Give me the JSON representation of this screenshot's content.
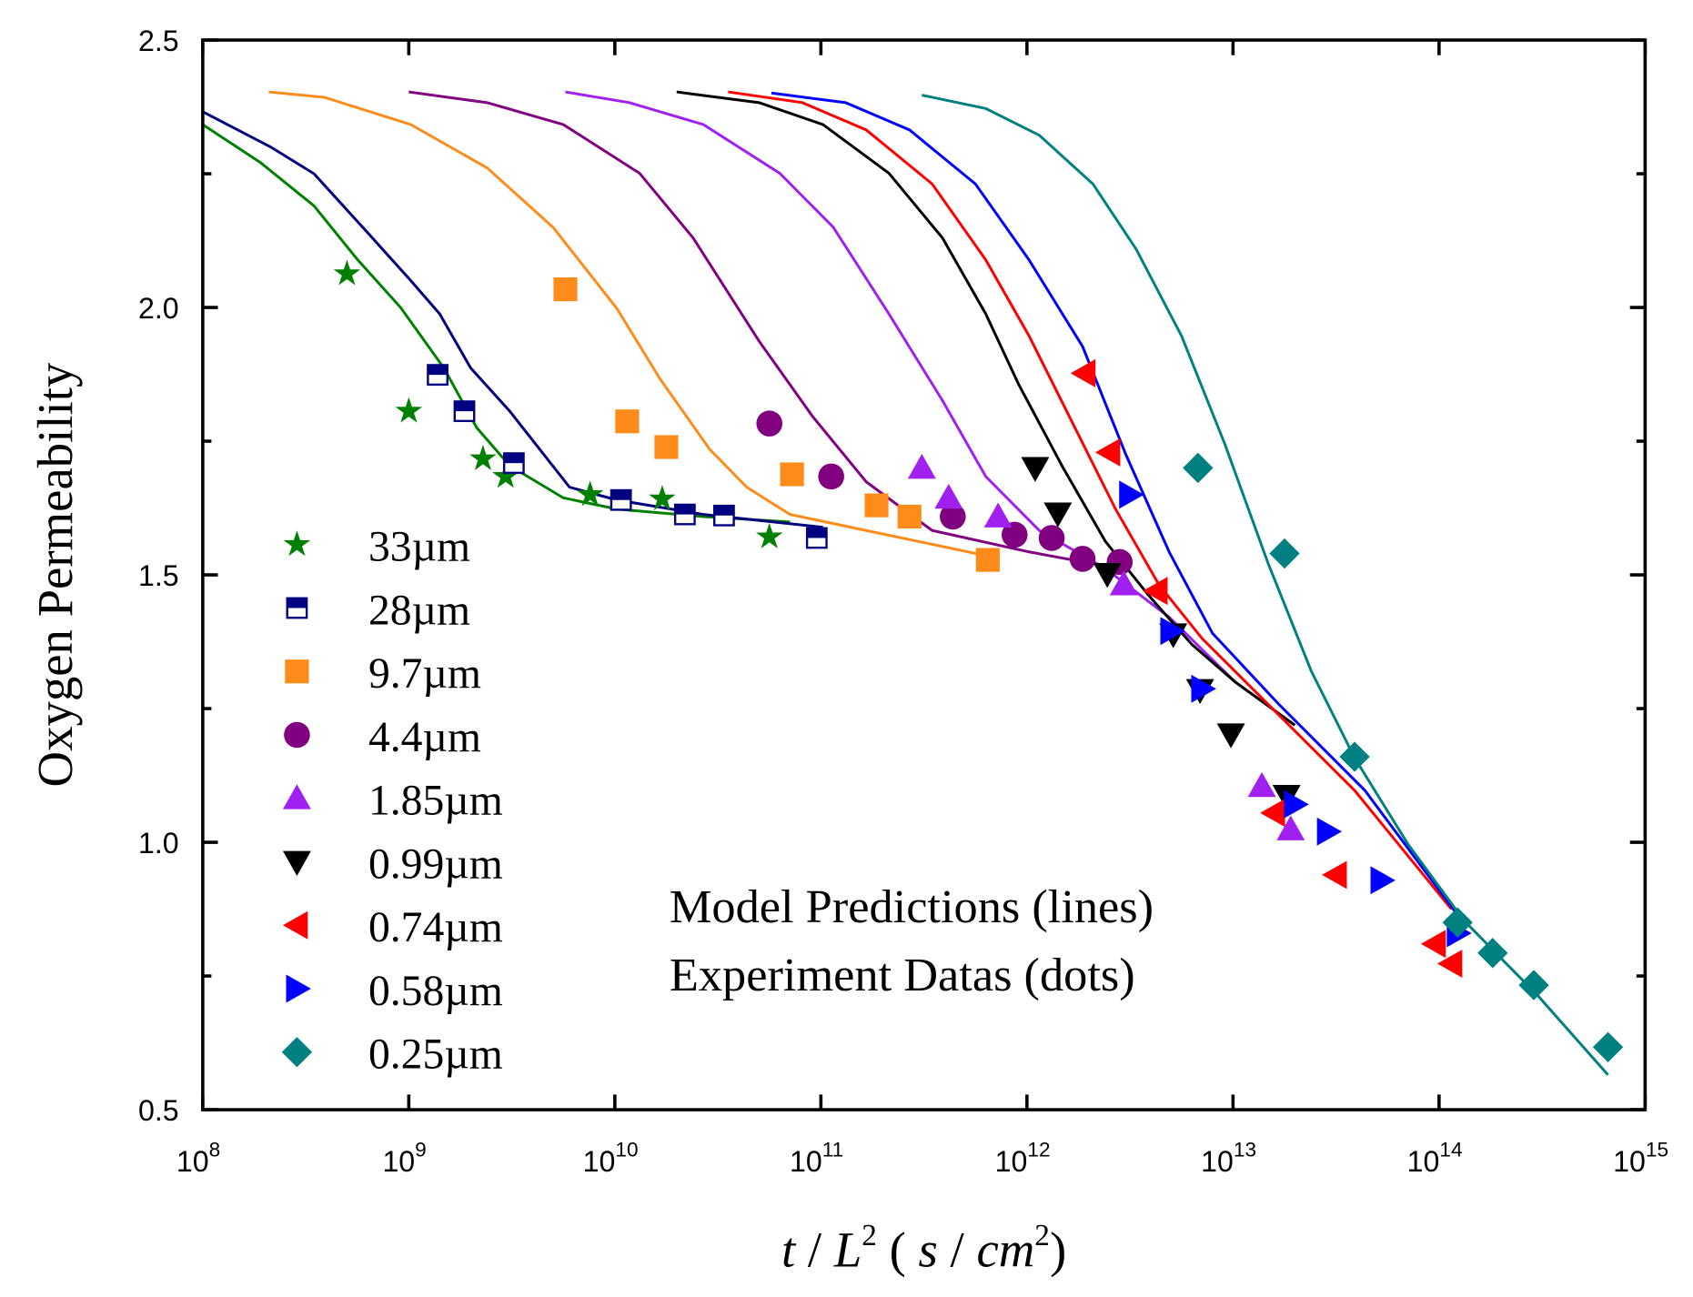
{
  "chart_data": {
    "type": "scatter",
    "title": "",
    "xlabel": "t / L2 ( s / cm2 )",
    "xlabel_parts": {
      "t": "t",
      "slash1": " / ",
      "L": "L",
      "sup1": "2",
      "open": " ( ",
      "s": "s",
      "slash2": " / ",
      "cm": "cm",
      "sup2": "2",
      "close": ")"
    },
    "ylabel": "Oxygen Permeability",
    "x_scale": "log10",
    "xlim_log10": [
      8,
      15
    ],
    "ylim": [
      0.5,
      2.5
    ],
    "x_ticks": [
      {
        "base": "10",
        "exp": "8"
      },
      {
        "base": "10",
        "exp": "9"
      },
      {
        "base": "10",
        "exp": "10"
      },
      {
        "base": "10",
        "exp": "11"
      },
      {
        "base": "10",
        "exp": "12"
      },
      {
        "base": "10",
        "exp": "13"
      },
      {
        "base": "10",
        "exp": "14"
      },
      {
        "base": "10",
        "exp": "15"
      }
    ],
    "y_ticks": [
      "0.5",
      "1.0",
      "1.5",
      "2.0",
      "2.5"
    ],
    "grid": false,
    "legend_position": "left",
    "annotations": [
      "Model Predictions (lines)",
      "Experiment Datas (dots)"
    ],
    "series": [
      {
        "name": "33µm",
        "color": "#008000",
        "marker": "star",
        "points_log10x": [
          [
            8.7,
            2.063
          ],
          [
            9.0,
            1.806
          ],
          [
            9.36,
            1.717
          ],
          [
            9.47,
            1.684
          ],
          [
            9.88,
            1.65
          ],
          [
            10.23,
            1.642
          ],
          [
            10.75,
            1.571
          ]
        ],
        "line_log10x": [
          [
            8.0,
            2.342
          ],
          [
            8.28,
            2.271
          ],
          [
            8.54,
            2.19
          ],
          [
            8.75,
            2.09
          ],
          [
            8.96,
            2.0
          ],
          [
            9.17,
            1.887
          ],
          [
            9.33,
            1.775
          ],
          [
            9.49,
            1.704
          ],
          [
            9.75,
            1.644
          ],
          [
            10.01,
            1.623
          ],
          [
            10.43,
            1.609
          ],
          [
            10.85,
            1.599
          ]
        ]
      },
      {
        "name": "28µm",
        "color": "#000080",
        "marker": "half-square",
        "points_log10x": [
          [
            9.14,
            1.874
          ],
          [
            9.27,
            1.806
          ],
          [
            9.51,
            1.709
          ],
          [
            10.03,
            1.64
          ],
          [
            10.34,
            1.613
          ],
          [
            10.53,
            1.611
          ],
          [
            10.98,
            1.569
          ]
        ],
        "line_log10x": [
          [
            8.0,
            2.366
          ],
          [
            8.33,
            2.3
          ],
          [
            8.54,
            2.25
          ],
          [
            8.8,
            2.14
          ],
          [
            9.01,
            2.05
          ],
          [
            9.15,
            1.988
          ],
          [
            9.3,
            1.887
          ],
          [
            9.49,
            1.806
          ],
          [
            9.78,
            1.664
          ],
          [
            10.01,
            1.64
          ],
          [
            10.43,
            1.613
          ],
          [
            11.01,
            1.589
          ]
        ]
      },
      {
        "name": "9.7µm",
        "color": "#FF8C1A",
        "marker": "square",
        "points_log10x": [
          [
            9.76,
            2.034
          ],
          [
            10.06,
            1.787
          ],
          [
            10.25,
            1.739
          ],
          [
            10.86,
            1.688
          ],
          [
            11.27,
            1.63
          ],
          [
            11.43,
            1.609
          ],
          [
            11.81,
            1.528
          ]
        ],
        "line_log10x": [
          [
            8.32,
            2.403
          ],
          [
            8.59,
            2.393
          ],
          [
            9.01,
            2.342
          ],
          [
            9.38,
            2.261
          ],
          [
            9.7,
            2.15
          ],
          [
            10.01,
            1.998
          ],
          [
            10.22,
            1.866
          ],
          [
            10.46,
            1.735
          ],
          [
            10.64,
            1.664
          ],
          [
            10.85,
            1.613
          ],
          [
            11.22,
            1.583
          ],
          [
            11.85,
            1.532
          ]
        ]
      },
      {
        "name": "4.4µm",
        "color": "#800080",
        "marker": "circle",
        "points_log10x": [
          [
            10.75,
            1.783
          ],
          [
            11.05,
            1.684
          ],
          [
            11.64,
            1.609
          ],
          [
            11.94,
            1.575
          ],
          [
            12.12,
            1.569
          ],
          [
            12.27,
            1.53
          ],
          [
            12.45,
            1.524
          ]
        ],
        "line_log10x": [
          [
            9.0,
            2.403
          ],
          [
            9.38,
            2.383
          ],
          [
            9.75,
            2.342
          ],
          [
            10.12,
            2.251
          ],
          [
            10.38,
            2.13
          ],
          [
            10.7,
            1.937
          ],
          [
            10.96,
            1.796
          ],
          [
            11.22,
            1.674
          ],
          [
            11.54,
            1.583
          ],
          [
            12.01,
            1.543
          ],
          [
            12.43,
            1.513
          ]
        ]
      },
      {
        "name": "1.85µm",
        "color": "#A020F0",
        "marker": "triangle-up",
        "points_log10x": [
          [
            11.49,
            1.7
          ],
          [
            11.62,
            1.644
          ],
          [
            11.86,
            1.609
          ],
          [
            12.47,
            1.482
          ],
          [
            13.14,
            1.105
          ],
          [
            13.28,
            1.024
          ]
        ],
        "line_log10x": [
          [
            9.76,
            2.403
          ],
          [
            10.07,
            2.383
          ],
          [
            10.43,
            2.342
          ],
          [
            10.8,
            2.251
          ],
          [
            11.06,
            2.15
          ],
          [
            11.33,
            1.988
          ],
          [
            11.59,
            1.826
          ],
          [
            11.8,
            1.684
          ],
          [
            12.06,
            1.583
          ],
          [
            12.38,
            1.512
          ],
          [
            12.69,
            1.421
          ],
          [
            13.01,
            1.3
          ],
          [
            13.3,
            1.219
          ]
        ]
      },
      {
        "name": "0.99µm",
        "color": "#000000",
        "marker": "triangle-down",
        "points_log10x": [
          [
            12.04,
            1.7
          ],
          [
            12.15,
            1.615
          ],
          [
            12.39,
            1.502
          ],
          [
            12.71,
            1.389
          ],
          [
            12.84,
            1.285
          ],
          [
            12.99,
            1.202
          ],
          [
            13.26,
            1.087
          ]
        ],
        "line_log10x": [
          [
            10.3,
            2.403
          ],
          [
            10.7,
            2.383
          ],
          [
            11.01,
            2.342
          ],
          [
            11.33,
            2.251
          ],
          [
            11.59,
            2.13
          ],
          [
            11.8,
            1.988
          ],
          [
            11.96,
            1.856
          ],
          [
            12.17,
            1.704
          ],
          [
            12.38,
            1.563
          ],
          [
            12.59,
            1.462
          ],
          [
            12.8,
            1.37
          ],
          [
            13.01,
            1.3
          ],
          [
            13.3,
            1.219
          ]
        ]
      },
      {
        "name": "0.74µm",
        "color": "#FF0000",
        "marker": "triangle-left",
        "points_log10x": [
          [
            12.28,
            1.877
          ],
          [
            12.4,
            1.729
          ],
          [
            12.63,
            1.47
          ],
          [
            13.2,
            1.055
          ],
          [
            13.5,
            0.939
          ],
          [
            13.98,
            0.81
          ],
          [
            14.06,
            0.773
          ]
        ],
        "line_log10x": [
          [
            10.55,
            2.403
          ],
          [
            10.91,
            2.383
          ],
          [
            11.22,
            2.332
          ],
          [
            11.54,
            2.231
          ],
          [
            11.8,
            2.089
          ],
          [
            12.01,
            1.947
          ],
          [
            12.22,
            1.785
          ],
          [
            12.43,
            1.623
          ],
          [
            12.64,
            1.482
          ],
          [
            12.85,
            1.381
          ],
          [
            13.22,
            1.239
          ],
          [
            13.59,
            1.097
          ],
          [
            14.06,
            0.875
          ]
        ]
      },
      {
        "name": "0.58µm",
        "color": "#0000FF",
        "marker": "triangle-right",
        "points_log10x": [
          [
            12.5,
            1.65
          ],
          [
            12.7,
            1.395
          ],
          [
            12.85,
            1.287
          ],
          [
            13.3,
            1.071
          ],
          [
            13.46,
            1.02
          ],
          [
            13.72,
            0.929
          ],
          [
            14.09,
            0.83
          ]
        ],
        "line_log10x": [
          [
            10.76,
            2.401
          ],
          [
            11.12,
            2.383
          ],
          [
            11.43,
            2.332
          ],
          [
            11.75,
            2.231
          ],
          [
            12.01,
            2.089
          ],
          [
            12.27,
            1.927
          ],
          [
            12.48,
            1.725
          ],
          [
            12.69,
            1.543
          ],
          [
            12.9,
            1.391
          ],
          [
            13.22,
            1.259
          ],
          [
            13.64,
            1.097
          ],
          [
            14.09,
            0.864
          ]
        ]
      },
      {
        "name": "0.25µm",
        "color": "#008080",
        "marker": "diamond",
        "points_log10x": [
          [
            12.83,
            1.7
          ],
          [
            13.25,
            1.54
          ],
          [
            13.59,
            1.16
          ],
          [
            14.09,
            0.85
          ],
          [
            14.26,
            0.793
          ],
          [
            14.46,
            0.733
          ],
          [
            14.82,
            0.617
          ]
        ],
        "line_log10x": [
          [
            11.49,
            2.397
          ],
          [
            11.8,
            2.372
          ],
          [
            12.06,
            2.322
          ],
          [
            12.32,
            2.231
          ],
          [
            12.53,
            2.109
          ],
          [
            12.75,
            1.947
          ],
          [
            12.96,
            1.745
          ],
          [
            13.17,
            1.522
          ],
          [
            13.38,
            1.32
          ],
          [
            13.59,
            1.158
          ],
          [
            13.85,
            0.996
          ],
          [
            14.12,
            0.854
          ],
          [
            14.48,
            0.713
          ],
          [
            14.82,
            0.565
          ]
        ]
      }
    ]
  }
}
